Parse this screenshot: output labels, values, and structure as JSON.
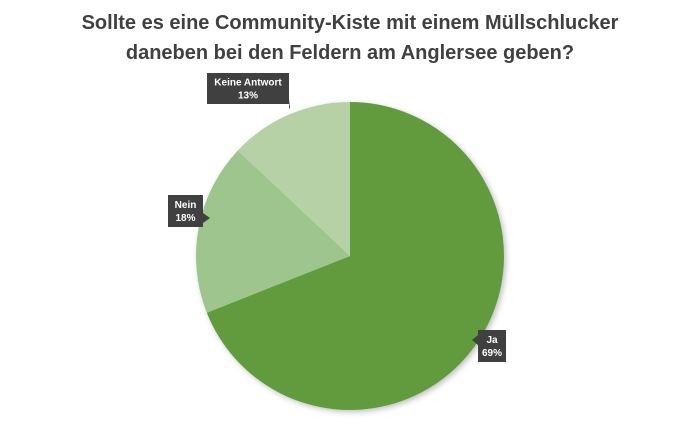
{
  "chart_data": {
    "type": "pie",
    "title_line1": "Sollte es eine Community-Kiste mit einem Müllschlucker",
    "title_line2": "daneben bei den Feldern am Anglersee geben?",
    "slices": [
      {
        "label": "Ja",
        "value": 69,
        "value_text": "69%",
        "color": "#629B3E"
      },
      {
        "label": "Nein",
        "value": 18,
        "value_text": "18%",
        "color": "#9FC58E"
      },
      {
        "label": "Keine Antwort",
        "value": 13,
        "value_text": "13%",
        "color": "#B6D1A6"
      }
    ]
  }
}
